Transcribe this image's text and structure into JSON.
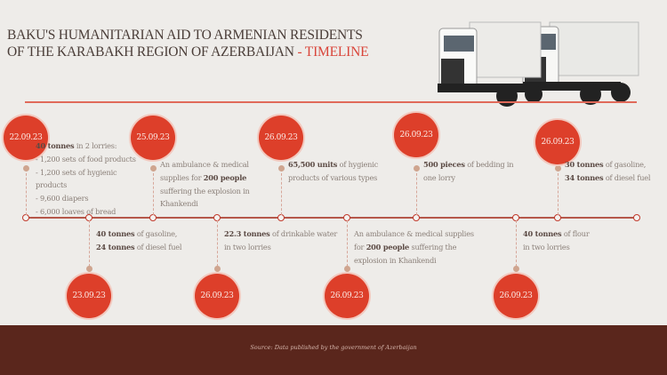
{
  "header": {
    "title_line1": "BAKU'S HUMANITARIAN AID TO ARMENIAN RESIDENTS",
    "title_line2": "OF THE KARABAKH REGION OF AZERBAIJAN ",
    "title_accent": "- TIMELINE",
    "image": "two-white-trucks"
  },
  "colors": {
    "accent": "#dd3f2a",
    "footer": "#5a261c",
    "background": "#eeece9"
  },
  "events": [
    {
      "date": "22.09.23",
      "position": "top",
      "lines": [
        [
          [
            "40 tonnes",
            1
          ],
          [
            " in 2 lorries:",
            0
          ]
        ],
        [
          [
            "- 1,200 sets of food products",
            0
          ]
        ],
        [
          [
            "- 1,200 sets of hygienic",
            0
          ]
        ],
        [
          [
            "products",
            0
          ]
        ],
        [
          [
            "- 9,600 diapers",
            0
          ]
        ],
        [
          [
            "- 6,000 loaves of bread",
            0
          ]
        ]
      ]
    },
    {
      "date": "23.09.23",
      "position": "bottom",
      "lines": [
        [
          [
            "40 tonnes",
            1
          ],
          [
            " of gasoline,",
            0
          ]
        ],
        [
          [
            "24 tonnes",
            1
          ],
          [
            " of diesel fuel",
            0
          ]
        ]
      ]
    },
    {
      "date": "25.09.23",
      "position": "top",
      "lines": [
        [
          [
            "An ambulance & medical",
            0
          ]
        ],
        [
          [
            "supplies for ",
            0
          ],
          [
            "200 people",
            1
          ]
        ],
        [
          [
            "suffering the explosion in",
            0
          ]
        ],
        [
          [
            "Khankendi",
            0
          ]
        ]
      ]
    },
    {
      "date": "26.09.23",
      "position": "bottom",
      "lines": [
        [
          [
            "22.3 tonnes",
            1
          ],
          [
            " of drinkable water",
            0
          ]
        ],
        [
          [
            "in two lorries",
            0
          ]
        ]
      ]
    },
    {
      "date": "26.09.23",
      "position": "top",
      "lines": [
        [
          [
            "65,500 units",
            1
          ],
          [
            " of hygienic",
            0
          ]
        ],
        [
          [
            "products of various types",
            0
          ]
        ]
      ]
    },
    {
      "date": "26.09.23",
      "position": "bottom",
      "lines": [
        [
          [
            "An ambulance & medical supplies",
            0
          ]
        ],
        [
          [
            "for ",
            0
          ],
          [
            "200 people",
            1
          ],
          [
            " suffering the",
            0
          ]
        ],
        [
          [
            "explosion in Khankendi",
            0
          ]
        ]
      ]
    },
    {
      "date": "26.09.23",
      "position": "top",
      "lines": [
        [
          [
            "500 pieces",
            1
          ],
          [
            " of bedding in",
            0
          ]
        ],
        [
          [
            "one lorry",
            0
          ]
        ]
      ]
    },
    {
      "date": "26.09.23",
      "position": "bottom",
      "lines": [
        [
          [
            "40 tonnes",
            1
          ],
          [
            " of flour",
            0
          ]
        ],
        [
          [
            "in two lorries",
            0
          ]
        ]
      ]
    },
    {
      "date": "26.09.23",
      "position": "top",
      "lines": [
        [
          [
            "30 tonnes",
            1
          ],
          [
            " of gasoline,",
            0
          ]
        ],
        [
          [
            "34 tonnes",
            1
          ],
          [
            " of diesel fuel",
            0
          ]
        ]
      ]
    }
  ],
  "footer": {
    "source": "Source: Data published by the government of Azerbaijan"
  }
}
